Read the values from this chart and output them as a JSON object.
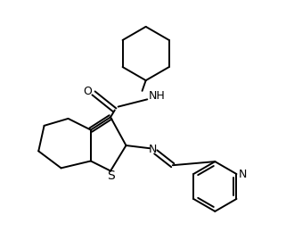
{
  "background_color": "#ffffff",
  "line_color": "#000000",
  "line_width": 1.4,
  "font_size": 9,
  "label_color": "#000000",
  "fig_width": 3.21,
  "fig_height": 2.69,
  "dpi": 100,
  "xlim": [
    0,
    10
  ],
  "ylim": [
    0,
    8.4
  ]
}
